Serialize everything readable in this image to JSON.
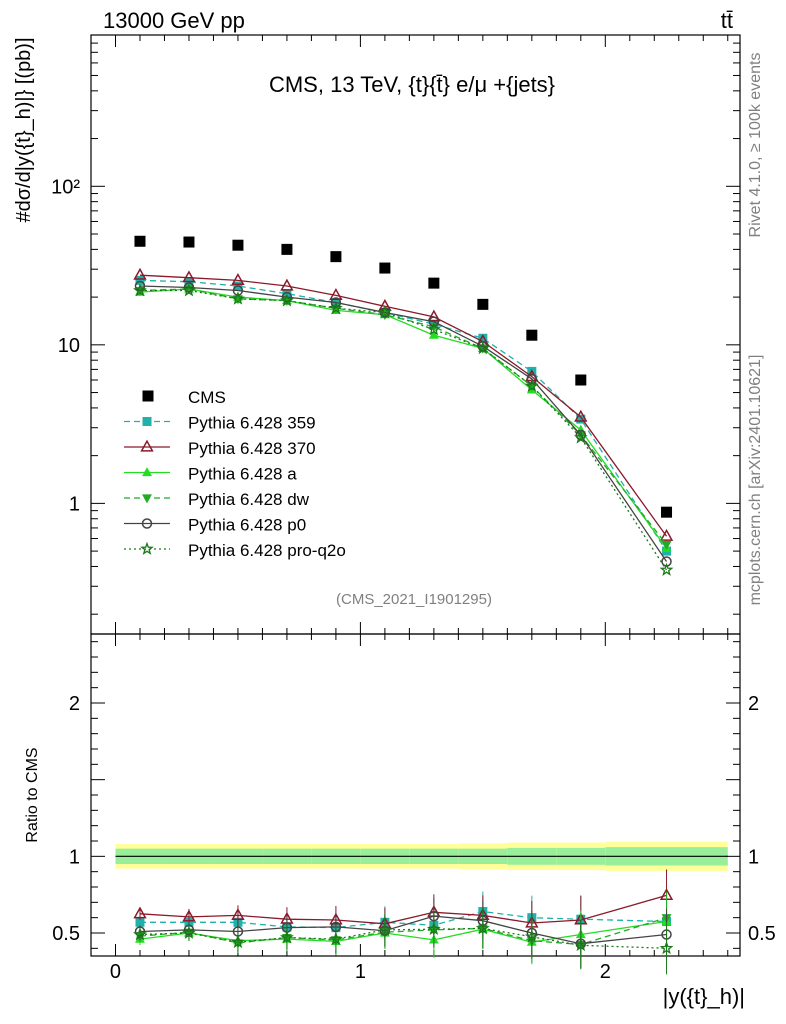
{
  "chart_data": {
    "type": "line",
    "energy_label": "13000 GeV pp",
    "process_label": "tt̄",
    "title": "CMS, 13 TeV, {t}{t̄} e/μ +{jets}",
    "ylabel_top": "#dσ/d|y({t}_h)|} [(pb)]",
    "ylabel_bottom": "Ratio to CMS",
    "xlabel": "|y({t}_h)|",
    "analysis_id": "(CMS_2021_I1901295)",
    "side_text_top": "Rivet 4.1.0, ≥ 100k events",
    "side_text_bottom": "mcplots.cern.ch [arXiv:2401.10621]",
    "x_range": [
      -0.1,
      2.55
    ],
    "y_range_top": [
      0.15,
      900
    ],
    "y_range_bottom": [
      0.35,
      2.45
    ],
    "x_ticks": [
      {
        "value": 0,
        "label": "0"
      },
      {
        "value": 1,
        "label": "1"
      },
      {
        "value": 2,
        "label": "2"
      }
    ],
    "y_ticks_top": [
      {
        "value": 1,
        "label": "1"
      },
      {
        "value": 10,
        "label": "10"
      },
      {
        "value": 100,
        "label": "10²"
      }
    ],
    "y_ticks_bottom": [
      {
        "value": 0.5,
        "label": "0.5"
      },
      {
        "value": 1,
        "label": "1"
      },
      {
        "value": 2,
        "label": "2"
      }
    ],
    "x": [
      0.1,
      0.3,
      0.5,
      0.7,
      0.9,
      1.1,
      1.3,
      1.5,
      1.7,
      1.9,
      2.25
    ],
    "bin_edges": [
      0.0,
      0.2,
      0.4,
      0.6,
      0.8,
      1.0,
      1.2,
      1.4,
      1.6,
      1.8,
      2.0,
      2.5
    ],
    "band_inner": [
      0.05,
      0.05,
      0.05,
      0.05,
      0.05,
      0.05,
      0.05,
      0.05,
      0.055,
      0.055,
      0.06
    ],
    "band_outer": [
      0.08,
      0.08,
      0.08,
      0.08,
      0.08,
      0.08,
      0.08,
      0.085,
      0.09,
      0.09,
      0.095
    ],
    "data": {
      "name": "CMS",
      "values": [
        45,
        44.5,
        42.5,
        40,
        36,
        30.5,
        24.5,
        18,
        11.5,
        6.0,
        0.88
      ]
    },
    "series": [
      {
        "name": "Pythia 6.428 359",
        "color": "#20b2aa",
        "dash": "6,4",
        "marker": "square",
        "values": [
          25.5,
          25,
          23.5,
          21,
          18.5,
          16,
          13.5,
          11,
          6.8,
          3.4,
          0.5
        ],
        "ratio": [
          0.57,
          0.57,
          0.57,
          0.54,
          0.535,
          0.57,
          0.55,
          0.64,
          0.6,
          0.59,
          0.575
        ]
      },
      {
        "name": "Pythia 6.428 370",
        "color": "#8b1a2b",
        "dash": "",
        "marker": "triangle-open",
        "values": [
          27.5,
          26.5,
          25.5,
          23.5,
          20.5,
          17.5,
          15,
          10.5,
          6.3,
          3.5,
          0.62
        ],
        "ratio": [
          0.625,
          0.605,
          0.615,
          0.59,
          0.585,
          0.56,
          0.635,
          0.615,
          0.565,
          0.585,
          0.745
        ]
      },
      {
        "name": "Pythia 6.428 a",
        "color": "#22dd22",
        "dash": "",
        "marker": "triangle",
        "values": [
          21.5,
          22.5,
          20,
          19,
          16.5,
          15.5,
          11.5,
          9.5,
          5.2,
          2.9,
          0.52
        ],
        "ratio": [
          0.46,
          0.5,
          0.45,
          0.46,
          0.445,
          0.5,
          0.455,
          0.525,
          0.44,
          0.49,
          0.575
        ]
      },
      {
        "name": "Pythia 6.428 dw",
        "color": "#22aa22",
        "dash": "6,4",
        "marker": "triangle-down",
        "values": [
          22,
          22.5,
          19.5,
          19,
          17,
          15.5,
          13,
          9.5,
          5.5,
          2.7,
          0.55
        ],
        "ratio": [
          0.48,
          0.505,
          0.435,
          0.47,
          0.455,
          0.505,
          0.52,
          0.53,
          0.45,
          0.425,
          0.6
        ]
      },
      {
        "name": "Pythia 6.428 p0",
        "color": "#444444",
        "dash": "",
        "marker": "circle-open",
        "values": [
          23.5,
          23,
          22,
          20,
          18.5,
          16,
          14,
          9.8,
          6.1,
          2.7,
          0.43
        ],
        "ratio": [
          0.51,
          0.52,
          0.51,
          0.535,
          0.54,
          0.515,
          0.61,
          0.58,
          0.5,
          0.43,
          0.49
        ]
      },
      {
        "name": "Pythia 6.428 pro-q2o",
        "color": "#1a7a1a",
        "dash": "2,3",
        "marker": "star-open",
        "values": [
          22,
          22,
          19.5,
          19,
          17,
          16,
          12.5,
          9.5,
          5.5,
          2.6,
          0.38
        ],
        "ratio": [
          0.49,
          0.5,
          0.44,
          0.47,
          0.46,
          0.52,
          0.525,
          0.53,
          0.475,
          0.42,
          0.4
        ]
      }
    ]
  }
}
